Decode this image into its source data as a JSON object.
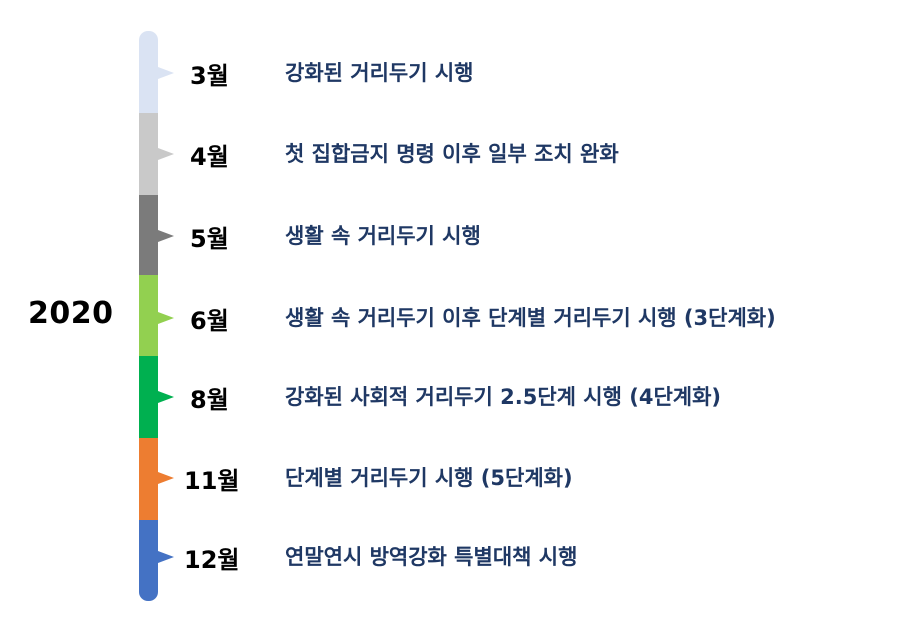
{
  "year": "2020",
  "timeline": [
    {
      "month": "3월",
      "event": "강화된 거리두기 시행",
      "color": "#dae3f3"
    },
    {
      "month": "4월",
      "event": "첫 집합금지 명령 이후 일부 조치 완화",
      "color": "#c9c9c9"
    },
    {
      "month": "5월",
      "event": "생활 속 거리두기 시행",
      "color": "#7b7b7b"
    },
    {
      "month": "6월",
      "event": "생활 속 거리두기 이후 단계별 거리두기 시행 (3단계화)",
      "color": "#92d050"
    },
    {
      "month": "8월",
      "event": "강화된 사회적 거리두기 2.5단계 시행 (4단계화)",
      "color": "#00b050"
    },
    {
      "month": "11월",
      "event": "단계별 거리두기 시행 (5단계화)",
      "color": "#ed7d31"
    },
    {
      "month": "12월",
      "event": "연말연시 방역강화 특별대책 시행",
      "color": "#4472c4"
    }
  ]
}
